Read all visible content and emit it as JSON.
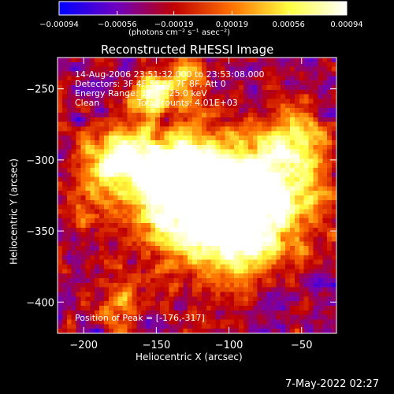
{
  "chart_data": {
    "type": "heatmap",
    "title": "Reconstructed RHESSI Image",
    "xlabel": "Heliocentric X (arcsec)",
    "ylabel": "Heliocentric Y (arcsec)",
    "xlim": [
      -218,
      -26
    ],
    "ylim": [
      -422,
      -228
    ],
    "x_ticks": [
      -200,
      -150,
      -100,
      -50
    ],
    "x_tick_labels": [
      "−200",
      "−150",
      "−100",
      "−50"
    ],
    "y_ticks": [
      -250,
      -300,
      -350,
      -400
    ],
    "y_tick_labels": [
      "−250",
      "−300",
      "−350",
      "−400"
    ],
    "colorbar": {
      "min": -0.00094,
      "max": 0.00094,
      "ticks": [
        -0.00094,
        -0.00056,
        -0.00019,
        0.00019,
        0.00056,
        0.00094
      ],
      "tick_labels": [
        "−0.00094",
        "−0.00056",
        "−0.00019",
        "0.00019",
        "0.00056",
        "0.00094"
      ],
      "unit": "(photons cm⁻² s⁻¹ asec⁻²)",
      "colors": [
        "#0000ff",
        "#6f00c0",
        "#c00000",
        "#ff7000",
        "#ffff40",
        "#ffffff"
      ]
    },
    "peak": [
      -176,
      -317
    ],
    "grid": false
  },
  "annotations": {
    "time_range": "14-Aug-2006 23:51:32.000 to 23:53:08.000",
    "detectors": "Detectors: 3F 4F 5F 6F 7F 8F, Att 0",
    "energy_range": "Energy Range: 12.0 - 25.0 keV",
    "clean_label": "Clean",
    "total_counts": "Total counts: 4.01E+03",
    "peak_position": "Position of Peak = [-176,-317]"
  },
  "footer": {
    "timestamp": "7-May-2022 02:27"
  }
}
